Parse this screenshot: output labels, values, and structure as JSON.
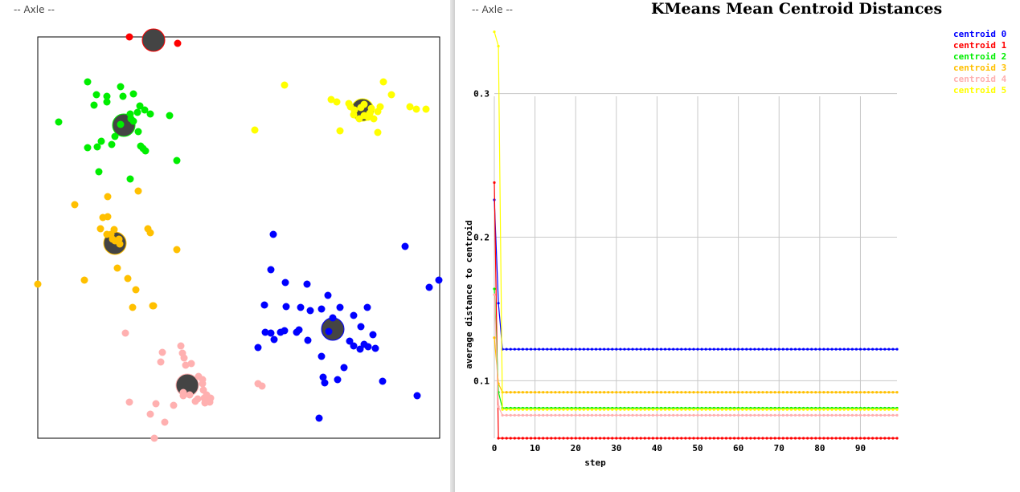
{
  "windows": [
    {
      "title": "-- Axle --"
    },
    {
      "title": "-- Axle --"
    }
  ],
  "colors": {
    "centroid_marker": "#444444",
    "clusters": [
      "#0000ff",
      "#ff0000",
      "#00ee00",
      "#ffc000",
      "#ffb0b0",
      "#ffff00"
    ]
  },
  "scatter": {
    "x_range": [
      0,
      1
    ],
    "y_range": [
      0,
      1
    ],
    "centroids": [
      {
        "cluster": 0,
        "x": 0.734,
        "y": 0.272
      },
      {
        "cluster": 1,
        "x": 0.288,
        "y": 0.992
      },
      {
        "cluster": 2,
        "x": 0.214,
        "y": 0.78
      },
      {
        "cluster": 3,
        "x": 0.192,
        "y": 0.486
      },
      {
        "cluster": 4,
        "x": 0.372,
        "y": 0.132
      },
      {
        "cluster": 5,
        "x": 0.808,
        "y": 0.818
      }
    ],
    "points": [
      {
        "cluster": 0,
        "xy": [
          [
            0.586,
            0.508
          ],
          [
            0.914,
            0.478
          ],
          [
            0.58,
            0.42
          ],
          [
            0.998,
            0.394
          ],
          [
            0.974,
            0.376
          ],
          [
            0.616,
            0.388
          ],
          [
            0.67,
            0.384
          ],
          [
            0.722,
            0.356
          ],
          [
            0.564,
            0.332
          ],
          [
            0.618,
            0.328
          ],
          [
            0.654,
            0.326
          ],
          [
            0.678,
            0.318
          ],
          [
            0.706,
            0.322
          ],
          [
            0.752,
            0.326
          ],
          [
            0.82,
            0.326
          ],
          [
            0.734,
            0.3
          ],
          [
            0.566,
            0.264
          ],
          [
            0.58,
            0.262
          ],
          [
            0.588,
            0.246
          ],
          [
            0.604,
            0.264
          ],
          [
            0.614,
            0.268
          ],
          [
            0.644,
            0.264
          ],
          [
            0.65,
            0.27
          ],
          [
            0.672,
            0.244
          ],
          [
            0.724,
            0.266
          ],
          [
            0.786,
            0.306
          ],
          [
            0.804,
            0.278
          ],
          [
            0.834,
            0.258
          ],
          [
            0.776,
            0.242
          ],
          [
            0.786,
            0.23
          ],
          [
            0.802,
            0.222
          ],
          [
            0.812,
            0.234
          ],
          [
            0.822,
            0.228
          ],
          [
            0.84,
            0.224
          ],
          [
            0.548,
            0.226
          ],
          [
            0.706,
            0.204
          ],
          [
            0.762,
            0.176
          ],
          [
            0.71,
            0.152
          ],
          [
            0.746,
            0.146
          ],
          [
            0.714,
            0.138
          ],
          [
            0.858,
            0.142
          ],
          [
            0.944,
            0.106
          ],
          [
            0.7,
            0.05
          ]
        ]
      },
      {
        "cluster": 1,
        "xy": [
          [
            0.228,
            1.0
          ],
          [
            0.348,
            0.984
          ]
        ]
      },
      {
        "cluster": 2,
        "xy": [
          [
            0.124,
            0.888
          ],
          [
            0.206,
            0.876
          ],
          [
            0.146,
            0.856
          ],
          [
            0.172,
            0.852
          ],
          [
            0.212,
            0.852
          ],
          [
            0.172,
            0.838
          ],
          [
            0.238,
            0.858
          ],
          [
            0.254,
            0.828
          ],
          [
            0.14,
            0.83
          ],
          [
            0.266,
            0.818
          ],
          [
            0.28,
            0.808
          ],
          [
            0.328,
            0.804
          ],
          [
            0.23,
            0.808
          ],
          [
            0.248,
            0.812
          ],
          [
            0.232,
            0.796
          ],
          [
            0.206,
            0.782
          ],
          [
            0.238,
            0.79
          ],
          [
            0.052,
            0.788
          ],
          [
            0.192,
            0.752
          ],
          [
            0.25,
            0.764
          ],
          [
            0.158,
            0.74
          ],
          [
            0.184,
            0.732
          ],
          [
            0.124,
            0.724
          ],
          [
            0.148,
            0.726
          ],
          [
            0.256,
            0.728
          ],
          [
            0.262,
            0.722
          ],
          [
            0.268,
            0.716
          ],
          [
            0.346,
            0.692
          ],
          [
            0.152,
            0.664
          ],
          [
            0.23,
            0.646
          ]
        ]
      },
      {
        "cluster": 3,
        "xy": [
          [
            0.25,
            0.616
          ],
          [
            0.174,
            0.602
          ],
          [
            0.092,
            0.582
          ],
          [
            0.162,
            0.55
          ],
          [
            0.174,
            0.552
          ],
          [
            0.156,
            0.522
          ],
          [
            0.19,
            0.52
          ],
          [
            0.172,
            0.508
          ],
          [
            0.182,
            0.508
          ],
          [
            0.186,
            0.496
          ],
          [
            0.202,
            0.496
          ],
          [
            0.192,
            0.492
          ],
          [
            0.204,
            0.484
          ],
          [
            0.274,
            0.522
          ],
          [
            0.28,
            0.512
          ],
          [
            0.346,
            0.47
          ],
          [
            0.0,
            0.384
          ],
          [
            0.116,
            0.394
          ],
          [
            0.198,
            0.424
          ],
          [
            0.224,
            0.398
          ],
          [
            0.244,
            0.37
          ],
          [
            0.288,
            0.33
          ],
          [
            0.236,
            0.326
          ],
          [
            0.286,
            0.33
          ]
        ]
      },
      {
        "cluster": 4,
        "xy": [
          [
            0.218,
            0.262
          ],
          [
            0.356,
            0.23
          ],
          [
            0.36,
            0.212
          ],
          [
            0.31,
            0.214
          ],
          [
            0.364,
            0.2
          ],
          [
            0.306,
            0.19
          ],
          [
            0.368,
            0.182
          ],
          [
            0.382,
            0.186
          ],
          [
            0.4,
            0.154
          ],
          [
            0.41,
            0.146
          ],
          [
            0.41,
            0.136
          ],
          [
            0.412,
            0.12
          ],
          [
            0.42,
            0.108
          ],
          [
            0.414,
            0.1
          ],
          [
            0.378,
            0.108
          ],
          [
            0.398,
            0.098
          ],
          [
            0.392,
            0.092
          ],
          [
            0.43,
            0.1
          ],
          [
            0.428,
            0.09
          ],
          [
            0.362,
            0.114
          ],
          [
            0.362,
            0.106
          ],
          [
            0.338,
            0.082
          ],
          [
            0.228,
            0.09
          ],
          [
            0.294,
            0.086
          ],
          [
            0.28,
            0.06
          ],
          [
            0.316,
            0.04
          ],
          [
            0.416,
            0.088
          ],
          [
            0.548,
            0.136
          ],
          [
            0.558,
            0.13
          ],
          [
            0.29,
            0.0
          ]
        ]
      },
      {
        "cluster": 5,
        "xy": [
          [
            0.86,
            0.888
          ],
          [
            0.614,
            0.88
          ],
          [
            0.88,
            0.856
          ],
          [
            0.73,
            0.844
          ],
          [
            0.744,
            0.838
          ],
          [
            0.774,
            0.834
          ],
          [
            0.778,
            0.826
          ],
          [
            0.788,
            0.818
          ],
          [
            0.804,
            0.824
          ],
          [
            0.812,
            0.832
          ],
          [
            0.83,
            0.822
          ],
          [
            0.826,
            0.81
          ],
          [
            0.822,
            0.8
          ],
          [
            0.836,
            0.796
          ],
          [
            0.846,
            0.814
          ],
          [
            0.812,
            0.804
          ],
          [
            0.8,
            0.796
          ],
          [
            0.786,
            0.806
          ],
          [
            0.852,
            0.826
          ],
          [
            0.926,
            0.826
          ],
          [
            0.942,
            0.82
          ],
          [
            0.966,
            0.82
          ],
          [
            0.54,
            0.768
          ],
          [
            0.752,
            0.766
          ],
          [
            0.846,
            0.762
          ]
        ]
      }
    ]
  },
  "chart_data": {
    "type": "line",
    "title": "KMeans Mean Centroid Distances",
    "xlabel": "step",
    "ylabel": "average distance to centroid",
    "xlim": [
      0,
      99
    ],
    "ylim": [
      0.06,
      0.34
    ],
    "x_ticks": [
      0,
      10,
      20,
      30,
      40,
      50,
      60,
      70,
      80,
      90
    ],
    "x_tick_labels": [
      "0",
      "10",
      "20",
      "30",
      "40",
      "50",
      "60",
      "70",
      "80",
      "90"
    ],
    "y_ticks": [
      0.1,
      0.2,
      0.3
    ],
    "y_tick_labels": [
      "0.1",
      "0.2",
      "0.3"
    ],
    "grid": true,
    "legend_position": "top-right",
    "series": [
      {
        "name": "centroid 0",
        "color": "#0000ff",
        "initial": [
          0.226,
          0.154,
          0.122
        ],
        "final": 0.122
      },
      {
        "name": "centroid 1",
        "color": "#ff0000",
        "initial": [
          0.238,
          0.06,
          0.06
        ],
        "final": 0.06
      },
      {
        "name": "centroid 2",
        "color": "#00ee00",
        "initial": [
          0.164,
          0.092,
          0.081
        ],
        "final": 0.081
      },
      {
        "name": "centroid 3",
        "color": "#ffc000",
        "initial": [
          0.13,
          0.098,
          0.092
        ],
        "final": 0.092
      },
      {
        "name": "centroid 4",
        "color": "#ffb0b0",
        "initial": [
          0.16,
          0.082,
          0.076
        ],
        "final": 0.076
      },
      {
        "name": "centroid 5",
        "color": "#ffff00",
        "initial": [
          0.343,
          0.333,
          0.08
        ],
        "final": 0.08
      }
    ]
  }
}
